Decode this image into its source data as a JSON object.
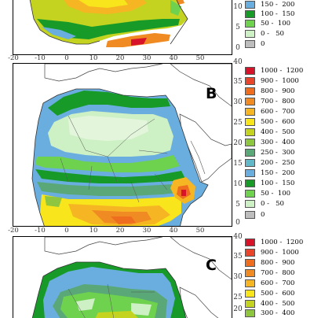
{
  "panels": [
    {
      "id": "A",
      "y_ticks": [
        "10",
        "5",
        "0"
      ],
      "x_ticks": [
        "-20",
        "-10",
        "0",
        "10",
        "20",
        "30",
        "40",
        "50"
      ],
      "legend": [
        {
          "label": "150 -  200",
          "color": "#6aaee0"
        },
        {
          "label": "100 -  150",
          "color": "#179a28"
        },
        {
          "label": "50 -  100",
          "color": "#6fd24e"
        },
        {
          "label": "0 -   50",
          "color": "#cdf0c4"
        },
        {
          "label": "0",
          "color": "#bdbdbd"
        }
      ]
    },
    {
      "id": "B",
      "label": "B",
      "y_ticks": [
        "40",
        "35",
        "30",
        "25",
        "20",
        "15",
        "10",
        "5",
        "0"
      ],
      "x_ticks": [
        "-20",
        "-10",
        "0",
        "10",
        "20",
        "30",
        "40",
        "50"
      ],
      "legend": [
        {
          "label": "1000 -  1200",
          "color": "#d7132a"
        },
        {
          "label": "900 -  1000",
          "color": "#e8452a"
        },
        {
          "label": "800 -  900",
          "color": "#ee6d1f"
        },
        {
          "label": "700 -  800",
          "color": "#f08a22"
        },
        {
          "label": "600 -  700",
          "color": "#f6b624"
        },
        {
          "label": "500 -  600",
          "color": "#f9e51b"
        },
        {
          "label": "400 -  500",
          "color": "#c3d320"
        },
        {
          "label": "300 -  400",
          "color": "#8ec63f"
        },
        {
          "label": "250 -  300",
          "color": "#5aa878"
        },
        {
          "label": "200 -  250",
          "color": "#60b8c8"
        },
        {
          "label": "150 -  200",
          "color": "#6aaee0"
        },
        {
          "label": "100 -  150",
          "color": "#179a28"
        },
        {
          "label": "50 -  100",
          "color": "#6fd24e"
        },
        {
          "label": "0 -   50",
          "color": "#cdf0c4"
        },
        {
          "label": "0",
          "color": "#bdbdbd"
        }
      ]
    },
    {
      "id": "C",
      "label": "C",
      "y_ticks": [
        "40",
        "35",
        "30",
        "25",
        "20"
      ],
      "legend": [
        {
          "label": "1000 -  1200",
          "color": "#d7132a"
        },
        {
          "label": "900 -  1000",
          "color": "#e8452a"
        },
        {
          "label": "800 -  900",
          "color": "#ee6d1f"
        },
        {
          "label": "700 -  800",
          "color": "#f08a22"
        },
        {
          "label": "600 -  700",
          "color": "#f6b624"
        },
        {
          "label": "500 -  600",
          "color": "#f9e51b"
        },
        {
          "label": "400 -  500",
          "color": "#c3d320"
        },
        {
          "label": "300 -  400",
          "color": "#8ec63f"
        }
      ]
    }
  ]
}
